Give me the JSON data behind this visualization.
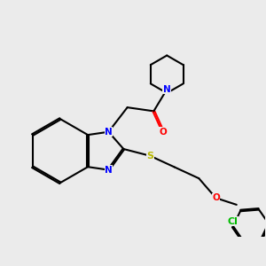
{
  "bg_color": "#ebebeb",
  "bond_color": "#000000",
  "bond_lw": 1.5,
  "atom_colors": {
    "N": "#0000ff",
    "O": "#ff0000",
    "S": "#b8b800",
    "Cl": "#00bb00",
    "C": "#000000"
  },
  "font_size": 7.5,
  "fig_w": 3.0,
  "fig_h": 3.0,
  "dpi": 100
}
